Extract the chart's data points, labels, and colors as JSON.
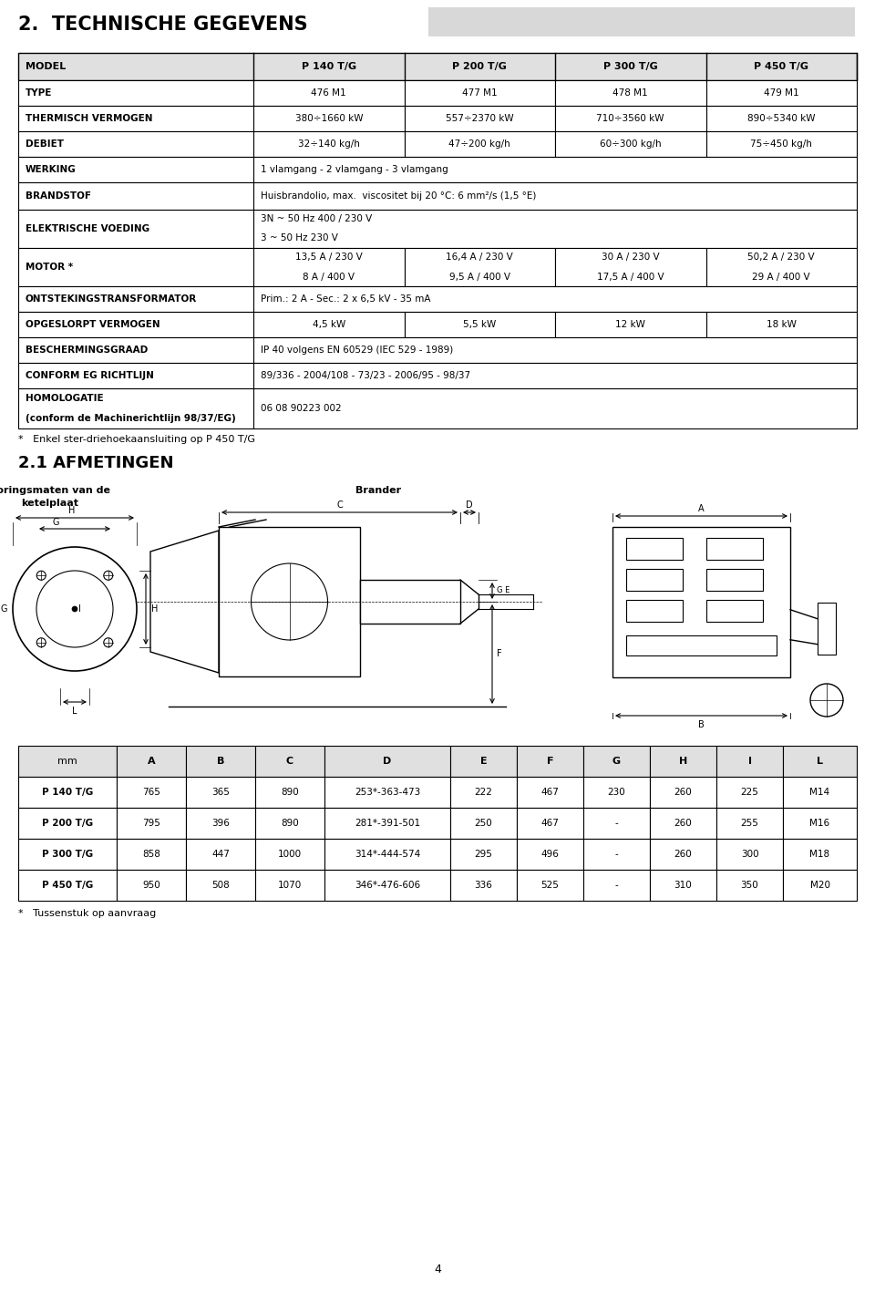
{
  "title": "2.  TECHNISCHE GEGEVENS",
  "section2_title": "2.1 AFMETINGEN",
  "page_number": "4",
  "footnote1": "*   Enkel ster-driehoekaansluiting op P 450 T/G",
  "footnote2": "*   Tussenstuk op aanvraag",
  "label_boringsmaten": "Boringsmaten van de\nketelplaat",
  "label_brander": "Brander",
  "table1": {
    "col_headers": [
      "MODEL",
      "P 140 T/G",
      "P 200 T/G",
      "P 300 T/G",
      "P 450 T/G"
    ],
    "rows": [
      [
        "TYPE",
        "476 M1",
        "477 M1",
        "478 M1",
        "479 M1"
      ],
      [
        "THERMISCH VERMOGEN",
        "380÷1660 kW",
        "557÷2370 kW",
        "710÷3560 kW",
        "890÷5340 kW"
      ],
      [
        "DEBIET",
        "32÷140 kg/h",
        "47÷200 kg/h",
        "60÷300 kg/h",
        "75÷450 kg/h"
      ],
      [
        "WERKING",
        "1 vlamgang - 2 vlamgang - 3 vlamgang",
        "",
        "",
        ""
      ],
      [
        "BRANDSTOF",
        "Huisbrandolio, max.  viscositet bij 20 °C: 6 mm²/s (1,5 °E)",
        "",
        "",
        ""
      ],
      [
        "ELEKTRISCHE VOEDING",
        "3N ~ 50 Hz 400 / 230 V\n3 ~ 50 Hz 230 V",
        "",
        "",
        ""
      ],
      [
        "MOTOR *",
        "13,5 A / 230 V\n8 A / 400 V",
        "16,4 A / 230 V\n9,5 A / 400 V",
        "30 A / 230 V\n17,5 A / 400 V",
        "50,2 A / 230 V\n29 A / 400 V"
      ],
      [
        "ONTSTEKINGSTRANSFORMATOR",
        "Prim.: 2 A - Sec.: 2 x 6,5 kV - 35 mA",
        "",
        "",
        ""
      ],
      [
        "OPGESLORPT VERMOGEN",
        "4,5 kW",
        "5,5 kW",
        "12 kW",
        "18 kW"
      ],
      [
        "BESCHERMINGSGRAAD",
        "IP 40 volgens EN 60529 (IEC 529 - 1989)",
        "",
        "",
        ""
      ],
      [
        "CONFORM EG RICHTLIJN",
        "89/336 - 2004/108 - 73/23 - 2006/95 - 98/37",
        "",
        "",
        ""
      ],
      [
        "HOMOLOGATIE\n(conform de Machinerichtlijn 98/37/EG)",
        "06 08 90223 002",
        "",
        "",
        ""
      ]
    ]
  },
  "table2": {
    "col_headers": [
      "mm",
      "A",
      "B",
      "C",
      "D",
      "E",
      "F",
      "G",
      "H",
      "I",
      "L"
    ],
    "rows": [
      [
        "P 140 T/G",
        "765",
        "365",
        "890",
        "253*-363-473",
        "222",
        "467",
        "230",
        "260",
        "225",
        "M14"
      ],
      [
        "P 200 T/G",
        "795",
        "396",
        "890",
        "281*-391-501",
        "250",
        "467",
        "-",
        "260",
        "255",
        "M16"
      ],
      [
        "P 300 T/G",
        "858",
        "447",
        "1000",
        "314*-444-574",
        "295",
        "496",
        "-",
        "260",
        "300",
        "M18"
      ],
      [
        "P 450 T/G",
        "950",
        "508",
        "1070",
        "346*-476-606",
        "336",
        "525",
        "-",
        "310",
        "350",
        "M20"
      ]
    ]
  },
  "bg_color": "#ffffff",
  "header_bg": "#e0e0e0",
  "border_color": "#000000"
}
